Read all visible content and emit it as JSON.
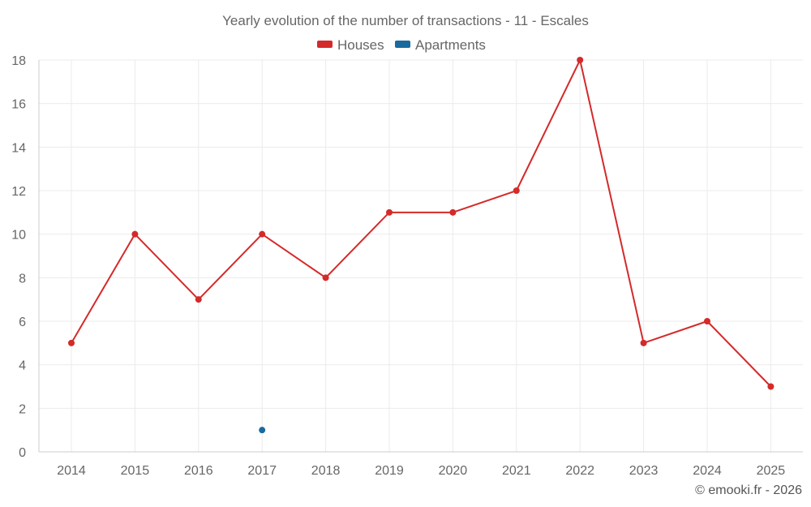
{
  "chart_data": {
    "type": "line",
    "title": "Yearly evolution of the number of transactions - 11 - Escales",
    "categories": [
      "2014",
      "2015",
      "2016",
      "2017",
      "2018",
      "2019",
      "2020",
      "2021",
      "2022",
      "2023",
      "2024",
      "2025"
    ],
    "series": [
      {
        "name": "Houses",
        "color": "#d42a2a",
        "values": [
          5,
          10,
          7,
          10,
          8,
          11,
          11,
          12,
          18,
          5,
          6,
          3
        ]
      },
      {
        "name": "Apartments",
        "color": "#1a6a9e",
        "values": [
          null,
          null,
          null,
          1,
          null,
          null,
          null,
          null,
          null,
          null,
          null,
          null
        ]
      }
    ],
    "ylim": [
      0,
      18
    ],
    "yticks": [
      "0",
      "2",
      "4",
      "6",
      "8",
      "10",
      "12",
      "14",
      "16",
      "18"
    ],
    "grid": true,
    "legend": "top-center",
    "xlabel": "",
    "ylabel": ""
  },
  "credit": "© emooki.fr - 2026"
}
